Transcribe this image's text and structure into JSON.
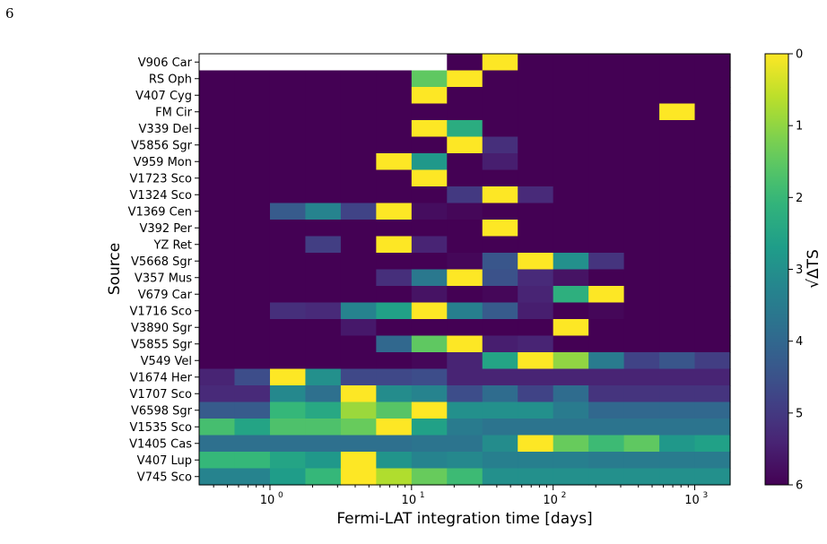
{
  "page_number": "6",
  "chart_data": {
    "type": "heatmap",
    "xlabel": "Fermi-LAT integration time [days]",
    "ylabel": "Source",
    "xscale": "log",
    "x_tick_labels": [
      {
        "value": 1,
        "label": "10",
        "sup": "0"
      },
      {
        "value": 10,
        "label": "10",
        "sup": "1"
      },
      {
        "value": 100,
        "label": "10",
        "sup": "2"
      },
      {
        "value": 1000,
        "label": "10",
        "sup": "3"
      }
    ],
    "x_edges_days": [
      0.316,
      0.562,
      1.0,
      1.778,
      3.162,
      5.623,
      10.0,
      17.78,
      31.62,
      56.23,
      100.0,
      177.8,
      316.2,
      562.3,
      1000.0,
      1778.3
    ],
    "sources": [
      "V906 Car",
      "RS Oph",
      "V407 Cyg",
      "FM Cir",
      "V339 Del",
      "V5856 Sgr",
      "V959 Mon",
      "V1723 Sco",
      "V1324 Sco",
      "V1369 Cen",
      "V392 Per",
      "YZ Ret",
      "V5668 Sgr",
      "V357 Mus",
      "V679 Car",
      "V1716 Sco",
      "V3890 Sgr",
      "V5855 Sgr",
      "V549 Vel",
      "V1674 Her",
      "V1707 Sco",
      "V6598 Sgr",
      "V1535 Sco",
      "V1405 Cas",
      "V407 Lup",
      "V745 Sco"
    ],
    "colorbar": {
      "label": "√ΔTS",
      "range": [
        0,
        6
      ],
      "reversed": true,
      "colormap": "viridis",
      "ticks": [
        "0",
        "1",
        "2",
        "3",
        "4",
        "5",
        "6"
      ]
    },
    "missing_color": "#ffffff",
    "values": [
      [
        null,
        null,
        null,
        null,
        null,
        null,
        null,
        6,
        0,
        6,
        6,
        6,
        6,
        6,
        6
      ],
      [
        6,
        6,
        6,
        6,
        6,
        6,
        1.5,
        0,
        6,
        6,
        6,
        6,
        6,
        6,
        6
      ],
      [
        6,
        6,
        6,
        6,
        6,
        6,
        0,
        6,
        6,
        6,
        6,
        6,
        6,
        6,
        6
      ],
      [
        6,
        6,
        6,
        6,
        6,
        6,
        6,
        6,
        6,
        6,
        6,
        6,
        6,
        0,
        6
      ],
      [
        6,
        6,
        6,
        6,
        6,
        6,
        0,
        2.3,
        6,
        6,
        6,
        6,
        6,
        6,
        6
      ],
      [
        6,
        6,
        6,
        6,
        6,
        6,
        6,
        0,
        5.2,
        6,
        6,
        6,
        6,
        6,
        6
      ],
      [
        6,
        6,
        6,
        6,
        6,
        0,
        2.8,
        6,
        5.5,
        6,
        6,
        6,
        6,
        6,
        6
      ],
      [
        6,
        6,
        6,
        6,
        6,
        6,
        0,
        6,
        6,
        6,
        6,
        6,
        6,
        6,
        6
      ],
      [
        6,
        6,
        6,
        6,
        6,
        6,
        6,
        5,
        0,
        5.3,
        6,
        6,
        6,
        6,
        6
      ],
      [
        6,
        6,
        4.3,
        3.3,
        4.8,
        0,
        5.8,
        5.9,
        6,
        6,
        6,
        6,
        6,
        6,
        6
      ],
      [
        6,
        6,
        6,
        6,
        6,
        6,
        6,
        6,
        0,
        6,
        6,
        6,
        6,
        6,
        6
      ],
      [
        6,
        6,
        6,
        4.9,
        6,
        0,
        5.4,
        6,
        6,
        6,
        6,
        6,
        6,
        6,
        6
      ],
      [
        6,
        6,
        6,
        6,
        6,
        6,
        6,
        5.9,
        4.4,
        0,
        3,
        5.1,
        6,
        6,
        6
      ],
      [
        6,
        6,
        6,
        6,
        6,
        5.2,
        3.6,
        0,
        4.5,
        5.3,
        5.7,
        6,
        6,
        6,
        6
      ],
      [
        6,
        6,
        6,
        6,
        6,
        6,
        5.7,
        6,
        5.9,
        5.4,
        2.2,
        0,
        6,
        6,
        6
      ],
      [
        6,
        6,
        5.2,
        5.3,
        3.3,
        2.6,
        0,
        3.4,
        4.3,
        5.5,
        6,
        5.9,
        6,
        6,
        6
      ],
      [
        6,
        6,
        6,
        6,
        5.6,
        6,
        6,
        6,
        6,
        6,
        0,
        6,
        6,
        6,
        6
      ],
      [
        6,
        6,
        6,
        6,
        6,
        4,
        1.5,
        0,
        5.5,
        5.4,
        6,
        6,
        6,
        6,
        6
      ],
      [
        6,
        6,
        6,
        6,
        6,
        6,
        5.9,
        5.4,
        2.5,
        0,
        1,
        3.5,
        4.8,
        4.4,
        4.9
      ],
      [
        5.4,
        4.6,
        0,
        3,
        4.7,
        4.7,
        4.6,
        5.4,
        5.4,
        5.4,
        5.4,
        5.4,
        5.4,
        5.4,
        5.4
      ],
      [
        5.3,
        5.3,
        3.2,
        3.8,
        0,
        3.1,
        3.3,
        4.6,
        3.9,
        4.8,
        3.9,
        5.1,
        5.1,
        5.1,
        5.1
      ],
      [
        4.3,
        4.3,
        2,
        2.4,
        0.9,
        1.6,
        0,
        3,
        3,
        3,
        3.5,
        4,
        4,
        4,
        4
      ],
      [
        1.8,
        2.5,
        1.7,
        1.7,
        1.4,
        0,
        2.6,
        3.5,
        3.7,
        3.7,
        3.7,
        3.7,
        3.7,
        3.7,
        3.7
      ],
      [
        3.8,
        3.8,
        3.8,
        3.8,
        3.8,
        3.8,
        3.7,
        3.7,
        3.1,
        0,
        1.4,
        1.9,
        1.5,
        2.8,
        2.6
      ],
      [
        2,
        2,
        2.5,
        2.8,
        0,
        2.9,
        3.3,
        3.2,
        3.4,
        3.4,
        3.4,
        3.5,
        3.5,
        3.5,
        3.5
      ],
      [
        3.3,
        3.3,
        2.7,
        2,
        0,
        0.7,
        1.4,
        1.9,
        3,
        3,
        3,
        3,
        3,
        3,
        3
      ]
    ]
  }
}
